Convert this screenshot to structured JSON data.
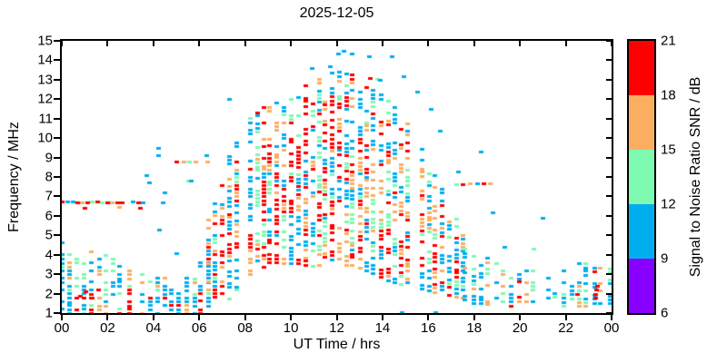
{
  "title": "2025-12-05",
  "axes": {
    "xlabel": "UT Time / hrs",
    "ylabel": "Frequency / MHz"
  },
  "colorbar": {
    "label": "Signal to Noise Ratio SNR / dB",
    "tick_labels": [
      "6",
      "9",
      "12",
      "15",
      "18",
      "21"
    ],
    "tick_values": [
      6,
      9,
      12,
      15,
      18,
      21
    ],
    "band_colors_bottom_to_top": [
      "#8800ff",
      "#00aeef",
      "#7efab1",
      "#fcae60",
      "#ff0000"
    ],
    "band_ranges_db": [
      [
        6,
        9
      ],
      [
        9,
        12
      ],
      [
        12,
        15
      ],
      [
        15,
        18
      ],
      [
        18,
        21
      ]
    ]
  },
  "chart_data": {
    "type": "scatter",
    "title": "2025-12-05",
    "xlabel": "UT Time / hrs",
    "ylabel": "Frequency / MHz",
    "xlim": [
      0,
      24
    ],
    "ylim": [
      1,
      15
    ],
    "grid": false,
    "x_tick_values": [
      0,
      2,
      4,
      6,
      8,
      10,
      12,
      14,
      16,
      18,
      20,
      22,
      24
    ],
    "x_tick_labels": [
      "00",
      "02",
      "04",
      "06",
      "08",
      "10",
      "12",
      "14",
      "16",
      "18",
      "20",
      "22",
      "00"
    ],
    "y_tick_values": [
      1,
      2,
      3,
      4,
      5,
      6,
      7,
      8,
      9,
      10,
      11,
      12,
      13,
      14,
      15
    ],
    "y_tick_labels": [
      "1",
      "2",
      "3",
      "4",
      "5",
      "6",
      "7",
      "8",
      "9",
      "10",
      "11",
      "12",
      "13",
      "14",
      "15"
    ],
    "snr_palette": [
      "#8800ff",
      "#00aeef",
      "#7efab1",
      "#fcae60",
      "#ff0000"
    ],
    "snr_levels_db": [
      6,
      9,
      12,
      15,
      18,
      21
    ],
    "seed": 1205,
    "point_w": 5,
    "point_h": 3,
    "freq_step": 0.2,
    "bands": [
      {
        "name": "night-E-layer",
        "t0": 0.0,
        "t1": 6.4,
        "dt": 0.32,
        "skip": 0.1,
        "fill": 0.62,
        "keys": [
          [
            0,
            1.0,
            4.7
          ],
          [
            1,
            1.0,
            4.5
          ],
          [
            2,
            1.0,
            4.2
          ],
          [
            3,
            1.0,
            3.4
          ],
          [
            4,
            1.0,
            3.0
          ],
          [
            5,
            1.0,
            2.9
          ],
          [
            6,
            1.0,
            3.6
          ],
          [
            6.4,
            1.2,
            5.0
          ]
        ],
        "weights": [
          [
            1,
            0.5
          ],
          [
            2,
            0.2
          ],
          [
            3,
            0.13
          ],
          [
            4,
            0.17
          ]
        ],
        "edge_depth": 1.0,
        "edge_weights": [
          [
            1,
            0.55
          ],
          [
            2,
            0.3
          ],
          [
            3,
            0.1
          ],
          [
            4,
            0.05
          ]
        ]
      },
      {
        "name": "daytime-F-layer-plume",
        "t0": 6.4,
        "t1": 17.6,
        "dt": 0.3,
        "skip": 0.08,
        "fill": 0.62,
        "keys": [
          [
            6.4,
            2.0,
            6.3
          ],
          [
            7,
            1.6,
            8.5
          ],
          [
            7.5,
            1.8,
            9.8
          ],
          [
            8,
            2.6,
            10.8
          ],
          [
            9,
            3.6,
            11.9
          ],
          [
            10,
            3.6,
            12.6
          ],
          [
            11,
            3.4,
            13.3
          ],
          [
            12,
            3.6,
            13.6
          ],
          [
            13,
            3.4,
            13.1
          ],
          [
            14,
            2.8,
            12.3
          ],
          [
            15,
            2.4,
            11.0
          ],
          [
            15.5,
            2.3,
            10.0
          ],
          [
            16,
            2.2,
            8.8
          ],
          [
            16.5,
            2.0,
            7.6
          ],
          [
            17,
            1.9,
            6.6
          ],
          [
            17.6,
            1.8,
            5.6
          ]
        ],
        "weights": [
          [
            1,
            0.28
          ],
          [
            2,
            0.16
          ],
          [
            3,
            0.22
          ],
          [
            4,
            0.34
          ]
        ],
        "edge_depth": 1.2,
        "edge_weights": [
          [
            1,
            0.52
          ],
          [
            2,
            0.26
          ],
          [
            3,
            0.12
          ],
          [
            4,
            0.1
          ]
        ]
      },
      {
        "name": "evening-night-E-layer",
        "t0": 17.6,
        "t1": 24.0,
        "dt": 0.33,
        "skip": 0.12,
        "fill": 0.55,
        "keys": [
          [
            17.6,
            1.5,
            5.0
          ],
          [
            18,
            1.5,
            4.4
          ],
          [
            19,
            1.4,
            3.6
          ],
          [
            20,
            1.4,
            3.4
          ],
          [
            22,
            1.4,
            3.5
          ],
          [
            24,
            1.3,
            3.8
          ]
        ],
        "weights": [
          [
            1,
            0.5
          ],
          [
            2,
            0.28
          ],
          [
            3,
            0.14
          ],
          [
            4,
            0.08
          ]
        ],
        "edge_depth": 0.8,
        "edge_weights": [
          [
            1,
            0.55
          ],
          [
            2,
            0.3
          ],
          [
            3,
            0.1
          ],
          [
            4,
            0.05
          ]
        ]
      }
    ],
    "hlines": [
      {
        "name": "fixed-trace-6.7MHz",
        "f": 6.7,
        "t0": 0.0,
        "t1": 4.6,
        "dt": 0.22,
        "fill": 0.85,
        "weights": [
          [
            4,
            0.45
          ],
          [
            1,
            0.25
          ],
          [
            3,
            0.22
          ],
          [
            2,
            0.08
          ]
        ]
      },
      {
        "name": "fixed-trace-6.4MHz",
        "f": 6.42,
        "t0": 0.1,
        "t1": 4.3,
        "dt": 0.3,
        "fill": 0.35,
        "weights": [
          [
            4,
            0.8
          ],
          [
            3,
            0.2
          ]
        ]
      },
      {
        "name": "fixed-trace-8.8MHz",
        "f": 8.8,
        "t0": 4.5,
        "t1": 7.1,
        "dt": 0.26,
        "fill": 0.6,
        "weights": [
          [
            1,
            0.38
          ],
          [
            4,
            0.27
          ],
          [
            3,
            0.25
          ],
          [
            2,
            0.1
          ]
        ]
      },
      {
        "name": "fixed-trace-7.65MHz",
        "f": 7.65,
        "t0": 16.6,
        "t1": 19.0,
        "dt": 0.3,
        "fill": 0.5,
        "weights": [
          [
            1,
            0.4
          ],
          [
            2,
            0.25
          ],
          [
            3,
            0.2
          ],
          [
            4,
            0.15
          ]
        ]
      }
    ],
    "extra_points": [
      [
        10.9,
        13.6,
        1
      ],
      [
        11.7,
        13.7,
        1
      ],
      [
        12.05,
        14.35,
        1
      ],
      [
        12.3,
        14.5,
        1
      ],
      [
        12.65,
        14.35,
        1
      ],
      [
        13.4,
        14.2,
        1
      ],
      [
        13.45,
        13.1,
        4
      ],
      [
        13.75,
        13.05,
        2
      ],
      [
        13.9,
        13.0,
        1
      ],
      [
        14.4,
        14.2,
        1
      ],
      [
        14.9,
        13.2,
        1
      ],
      [
        15.5,
        12.4,
        1
      ],
      [
        16.1,
        11.5,
        1
      ],
      [
        16.5,
        10.4,
        1
      ],
      [
        17.3,
        8.3,
        1
      ],
      [
        18.3,
        9.3,
        1
      ],
      [
        18.8,
        6.2,
        1
      ],
      [
        19.3,
        4.4,
        1
      ],
      [
        20.6,
        4.3,
        2
      ],
      [
        21.0,
        5.9,
        1
      ],
      [
        14.85,
        1.07,
        1
      ],
      [
        16.3,
        1.07,
        1
      ],
      [
        3.7,
        8.1,
        1
      ],
      [
        3.8,
        7.7,
        1
      ],
      [
        4.2,
        9.5,
        1
      ],
      [
        4.2,
        9.1,
        1
      ],
      [
        4.5,
        7.2,
        1
      ],
      [
        5.0,
        4.1,
        1
      ],
      [
        4.25,
        5.3,
        1
      ],
      [
        5.5,
        7.8,
        2
      ],
      [
        5.65,
        7.8,
        1
      ],
      [
        6.3,
        9.1,
        1
      ],
      [
        7.3,
        12.0,
        1
      ],
      [
        0.8,
        1.9,
        4
      ],
      [
        1.05,
        2.1,
        4
      ],
      [
        1.3,
        1.8,
        4
      ],
      [
        1.6,
        2.2,
        4
      ],
      [
        23.3,
        1.8,
        4
      ],
      [
        23.3,
        2.0,
        4
      ],
      [
        23.32,
        2.2,
        4
      ],
      [
        23.35,
        2.4,
        4
      ],
      [
        22.5,
        2.0,
        4
      ]
    ]
  }
}
